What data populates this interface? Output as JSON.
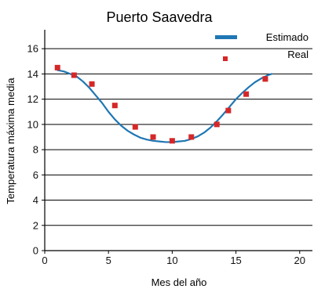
{
  "chart_data": {
    "type": "line",
    "title": "Puerto Saavedra",
    "xlabel": "Mes del año",
    "ylabel": "Temperatura máxima media",
    "xlim": [
      0,
      21
    ],
    "ylim": [
      0,
      17.5
    ],
    "xticks": [
      0,
      5,
      10,
      15,
      20
    ],
    "yticks": [
      0,
      2,
      4,
      6,
      8,
      10,
      12,
      14,
      16
    ],
    "grid": "horizontal",
    "legend_position": "top-right",
    "series": [
      {
        "name": "Estimado",
        "kind": "line",
        "color": "#1f77b4",
        "x": [
          1,
          1.5,
          2,
          2.5,
          3,
          3.5,
          4,
          4.5,
          5,
          5.5,
          6,
          6.5,
          7,
          7.5,
          8,
          8.5,
          9,
          9.5,
          10,
          10.5,
          11,
          11.5,
          12,
          12.5,
          13,
          13.5,
          14,
          14.5,
          15,
          15.5,
          16,
          16.5,
          17,
          17.5,
          17.8
        ],
        "y": [
          14.3,
          14.2,
          14.0,
          13.8,
          13.4,
          12.9,
          12.3,
          11.7,
          11.0,
          10.4,
          9.9,
          9.5,
          9.2,
          8.95,
          8.8,
          8.7,
          8.65,
          8.6,
          8.6,
          8.65,
          8.7,
          8.85,
          9.05,
          9.35,
          9.75,
          10.25,
          10.8,
          11.4,
          12.0,
          12.5,
          12.95,
          13.35,
          13.65,
          13.9,
          14.0
        ]
      },
      {
        "name": "Real",
        "kind": "scatter",
        "color": "#d62728",
        "x": [
          1.0,
          2.3,
          3.7,
          5.5,
          7.1,
          8.5,
          10.0,
          11.5,
          13.5,
          14.4,
          15.8,
          17.3
        ],
        "y": [
          14.5,
          13.9,
          13.2,
          11.5,
          9.8,
          9.0,
          8.7,
          9.0,
          10.0,
          11.1,
          12.4,
          13.6
        ]
      }
    ]
  }
}
